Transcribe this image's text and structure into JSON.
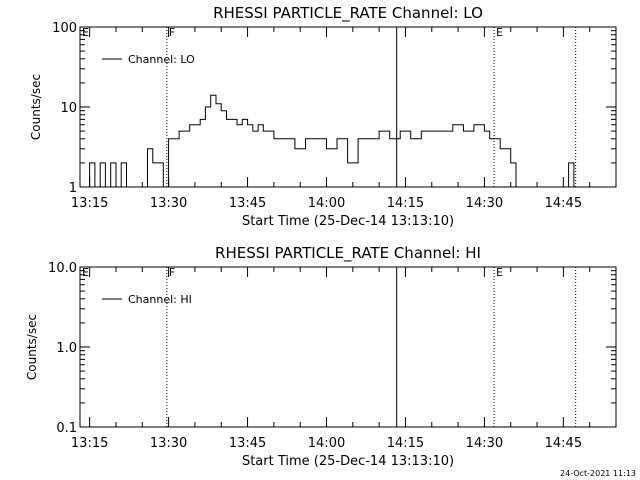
{
  "chart_data": [
    {
      "type": "line",
      "title": "RHESSI PARTICLE_RATE Channel: LO",
      "xlabel": "Start Time (25-Dec-14 13:13:10)",
      "ylabel": "Counts/sec",
      "y_scale": "log",
      "ylim": [
        1,
        100
      ],
      "xlim": [
        "13:13:10",
        "14:55:00"
      ],
      "x_ticks": [
        "13:15",
        "13:30",
        "13:45",
        "14:00",
        "14:15",
        "14:30",
        "14:45"
      ],
      "y_ticks": [
        "1",
        "10",
        "100"
      ],
      "legend": {
        "label": "Channel: LO",
        "placement": "top-left"
      },
      "markers": [
        {
          "label": "E",
          "time": "13:13:10",
          "style": "dotted"
        },
        {
          "label": "F",
          "time": "13:29:40",
          "style": "dotted"
        },
        {
          "label": "",
          "time": "14:13:20",
          "style": "solid"
        },
        {
          "label": "E",
          "time": "14:31:50",
          "style": "dotted"
        },
        {
          "label": "",
          "time": "14:47:20",
          "style": "dotted"
        }
      ],
      "series": [
        {
          "name": "Channel: LO",
          "x": [
            "13:14:00",
            "13:15:00",
            "13:16:00",
            "13:17:00",
            "13:18:00",
            "13:19:00",
            "13:20:00",
            "13:21:00",
            "13:22:00",
            "13:23:00",
            "13:24:00",
            "13:25:00",
            "13:26:00",
            "13:27:00",
            "13:28:00",
            "13:29:00",
            "13:30:00",
            "13:31:00",
            "13:32:00",
            "13:33:00",
            "13:34:00",
            "13:35:00",
            "13:36:00",
            "13:37:00",
            "13:38:00",
            "13:39:00",
            "13:40:00",
            "13:41:00",
            "13:42:00",
            "13:43:00",
            "13:44:00",
            "13:45:00",
            "13:46:00",
            "13:47:00",
            "13:48:00",
            "13:50:00",
            "13:52:00",
            "13:54:00",
            "13:56:00",
            "13:58:00",
            "14:00:00",
            "14:02:00",
            "14:04:00",
            "14:06:00",
            "14:08:00",
            "14:10:00",
            "14:12:00",
            "14:14:00",
            "14:16:00",
            "14:18:00",
            "14:20:00",
            "14:22:00",
            "14:24:00",
            "14:26:00",
            "14:28:00",
            "14:30:00",
            "14:31:00",
            "14:32:00",
            "14:33:00",
            "14:34:00",
            "14:35:00",
            "14:36:00",
            "14:37:00",
            "14:38:00",
            "14:39:00",
            "14:40:00",
            "14:41:00",
            "14:42:00",
            "14:44:00",
            "14:46:00",
            "14:47:00",
            "14:48:00"
          ],
          "y": [
            1,
            2,
            1,
            2,
            1,
            2,
            1,
            2,
            1,
            1,
            1,
            1,
            3,
            2,
            2,
            1,
            4,
            4,
            5,
            5,
            6,
            6,
            7,
            10,
            14,
            11,
            9,
            7,
            7,
            6,
            7,
            6,
            5,
            6,
            5,
            4,
            4,
            3,
            4,
            4,
            3,
            4,
            2,
            4,
            4,
            5,
            4,
            5,
            4,
            5,
            5,
            5,
            6,
            5,
            6,
            5,
            4,
            4,
            3,
            3,
            2,
            1,
            1,
            1,
            1,
            1,
            1,
            1,
            1,
            2,
            1,
            1
          ]
        }
      ]
    },
    {
      "type": "line",
      "title": "RHESSI PARTICLE_RATE Channel: HI",
      "xlabel": "Start Time (25-Dec-14 13:13:10)",
      "ylabel": "Counts/sec",
      "y_scale": "log",
      "ylim": [
        0.1,
        10
      ],
      "xlim": [
        "13:13:10",
        "14:55:00"
      ],
      "x_ticks": [
        "13:15",
        "13:30",
        "13:45",
        "14:00",
        "14:15",
        "14:30",
        "14:45"
      ],
      "y_ticks": [
        "0.1",
        "1.0",
        "10.0"
      ],
      "legend": {
        "label": "Channel: HI",
        "placement": "top-left"
      },
      "markers": [
        {
          "label": "E",
          "time": "13:13:10",
          "style": "dotted"
        },
        {
          "label": "F",
          "time": "13:29:40",
          "style": "dotted"
        },
        {
          "label": "",
          "time": "14:13:20",
          "style": "solid"
        },
        {
          "label": "E",
          "time": "14:31:50",
          "style": "dotted"
        },
        {
          "label": "",
          "time": "14:47:20",
          "style": "dotted"
        }
      ],
      "series": [
        {
          "name": "Channel: HI",
          "x": [],
          "y": []
        }
      ]
    }
  ],
  "footer": {
    "stamp": "24-Oct-2021 11:13"
  }
}
